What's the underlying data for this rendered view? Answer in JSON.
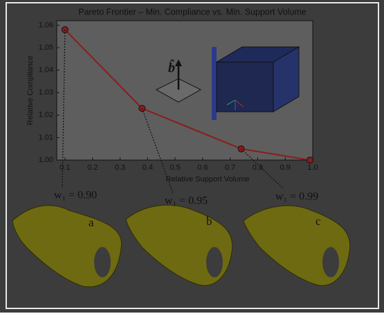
{
  "chart_data": {
    "type": "line",
    "title": "Pareto Frontier – Min. Compliance vs. Min. Support Volume",
    "x_label": "Relative Support Volume",
    "y_label": "Relative Compliance",
    "x": [
      0.1,
      0.38,
      0.74,
      0.99
    ],
    "series": [
      {
        "color": "#8b1c1c",
        "values": [
          1.058,
          1.023,
          1.005,
          1.0
        ]
      }
    ],
    "xlim": [
      0.07,
      1.0
    ],
    "ylim": [
      1.0,
      1.062
    ],
    "xticks": [
      0.1,
      0.2,
      0.3,
      0.4,
      0.5,
      0.6,
      0.7,
      0.8,
      0.9,
      {
        "value": 1.0,
        "label": "1.0"
      }
    ],
    "yticks": [
      {
        "value": 1.0,
        "label": "1.00"
      },
      1.01,
      1.02,
      1.03,
      1.04,
      1.05,
      1.06
    ],
    "annotations": [
      "w₁ = 0.90",
      "w₁ = 0.95",
      "w₁ = 0.99"
    ],
    "inset_label": "b̂",
    "panel_labels": [
      "a",
      "b",
      "c"
    ]
  }
}
